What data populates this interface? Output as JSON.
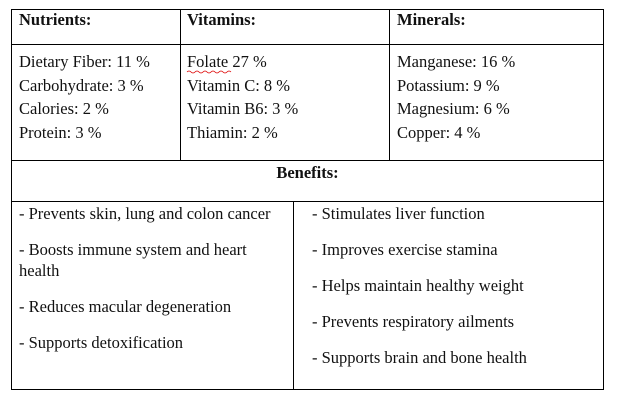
{
  "table": {
    "headers": [
      "Nutrients:",
      "Vitamins:",
      "Minerals:"
    ],
    "columns": [
      [
        "Dietary Fiber: 11 %",
        "Carbohydrate: 3 %",
        "Calories: 2 %",
        "Protein: 3 %"
      ],
      [
        "Folate 27 %",
        "Vitamin C: 8 %",
        "Vitamin B6: 3 %",
        "Thiamin: 2 %"
      ],
      [
        "Manganese: 16 %",
        "Potassium: 9 %",
        "Magnesium: 6 %",
        "Copper: 4 %"
      ]
    ],
    "benefits_title": "Benefits:",
    "benefits": [
      [
        "- Prevents skin, lung and colon cancer",
        "- Boosts immune system and heart health",
        "- Reduces macular degeneration",
        "- Supports detoxification"
      ],
      [
        "- Stimulates liver function",
        "- Improves exercise stamina",
        "- Helps maintain healthy weight",
        "- Prevents respiratory ailments",
        "- Supports brain and bone health"
      ]
    ]
  }
}
